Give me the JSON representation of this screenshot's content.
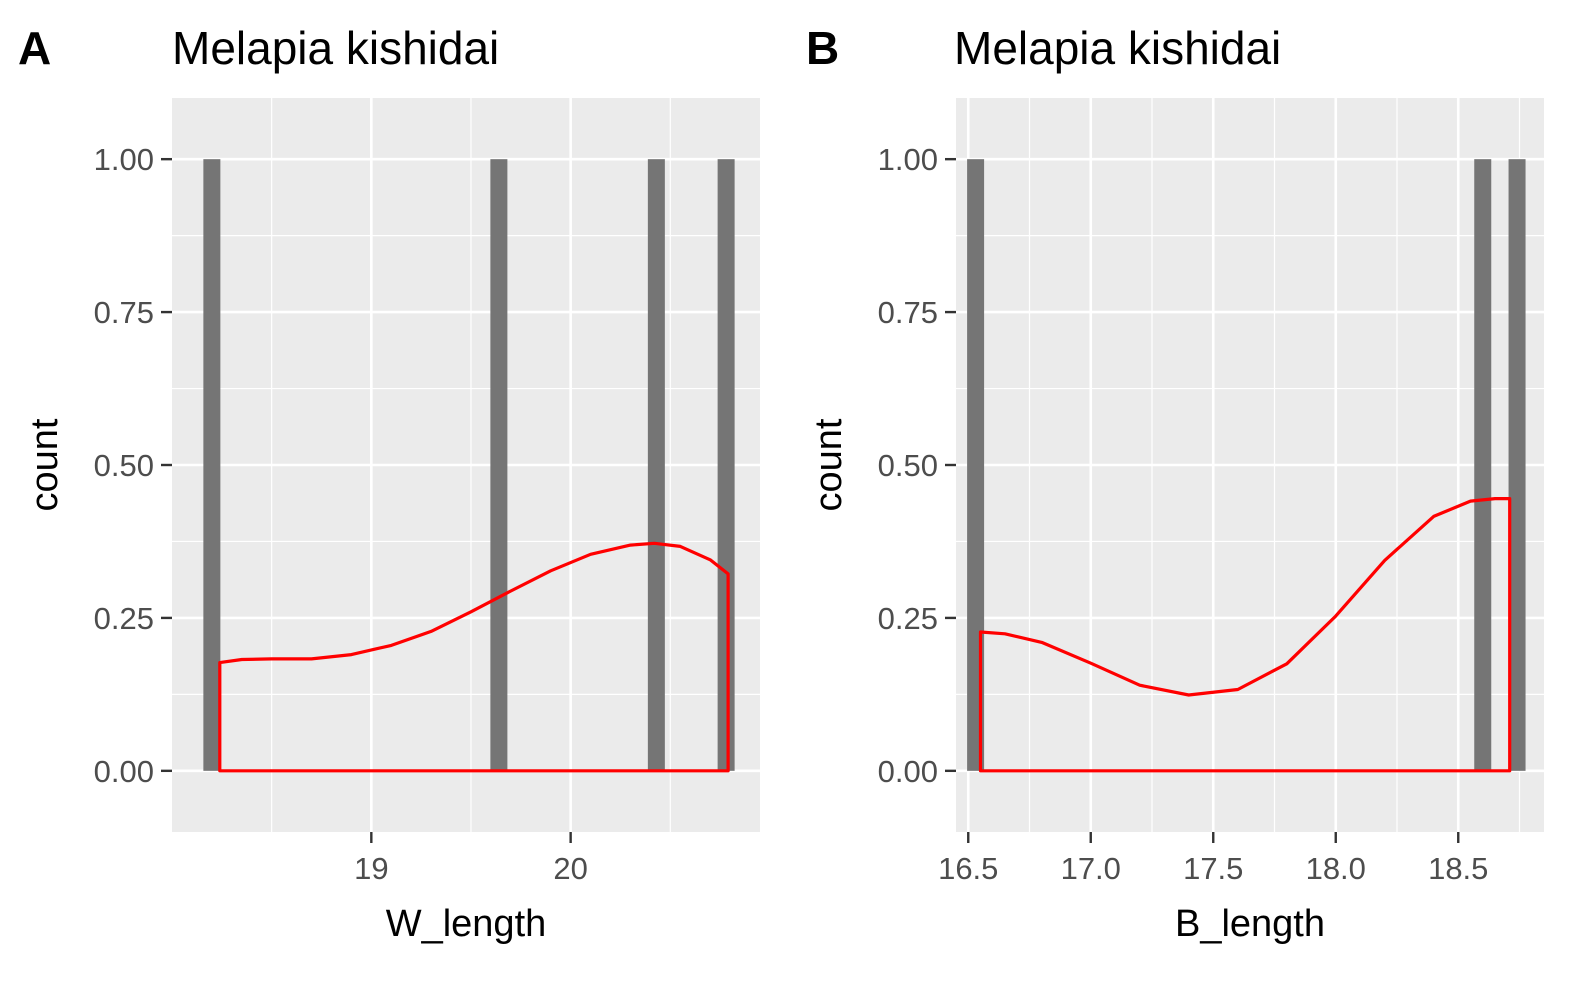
{
  "figure": {
    "panels": [
      {
        "letter": "A",
        "title": "Melapia kishidai"
      },
      {
        "letter": "B",
        "title": "Melapia kishidai"
      }
    ]
  },
  "chart_data": [
    {
      "type": "bar",
      "title": "Melapia kishidai",
      "panel_label": "A",
      "xlabel": "W_length",
      "ylabel": "count",
      "xlim": [
        18.0,
        20.95
      ],
      "ylim": [
        -0.1,
        1.1
      ],
      "xticks": [
        19,
        20
      ],
      "xtick_labels": [
        "19",
        "20"
      ],
      "yticks": [
        0.0,
        0.25,
        0.5,
        0.75,
        1.0
      ],
      "ytick_labels": [
        "0.00",
        "0.25",
        "0.50",
        "0.75",
        "1.00"
      ],
      "grid": true,
      "bar_color": "#757575",
      "bars": [
        {
          "x": 18.2,
          "value": 1
        },
        {
          "x": 19.64,
          "value": 1
        },
        {
          "x": 20.43,
          "value": 1
        },
        {
          "x": 20.78,
          "value": 1
        }
      ],
      "density": {
        "color": "#ff0000",
        "x": [
          18.24,
          18.35,
          18.5,
          18.7,
          18.9,
          19.1,
          19.3,
          19.5,
          19.7,
          19.9,
          20.1,
          20.3,
          20.42,
          20.55,
          20.7,
          20.79
        ],
        "y": [
          0.177,
          0.182,
          0.183,
          0.183,
          0.19,
          0.205,
          0.228,
          0.26,
          0.294,
          0.327,
          0.354,
          0.369,
          0.372,
          0.367,
          0.345,
          0.322
        ]
      }
    },
    {
      "type": "bar",
      "title": "Melapia kishidai",
      "panel_label": "B",
      "xlabel": "B_length",
      "ylabel": "count",
      "xlim": [
        16.45,
        18.85
      ],
      "ylim": [
        -0.1,
        1.1
      ],
      "xticks": [
        16.5,
        17.0,
        17.5,
        18.0,
        18.5
      ],
      "xtick_labels": [
        "16.5",
        "17.0",
        "17.5",
        "18.0",
        "18.5"
      ],
      "yticks": [
        0.0,
        0.25,
        0.5,
        0.75,
        1.0
      ],
      "ytick_labels": [
        "0.00",
        "0.25",
        "0.50",
        "0.75",
        "1.00"
      ],
      "grid": true,
      "bar_color": "#757575",
      "bars": [
        {
          "x": 16.53,
          "value": 1
        },
        {
          "x": 18.6,
          "value": 1
        },
        {
          "x": 18.74,
          "value": 1
        }
      ],
      "density": {
        "color": "#ff0000",
        "x": [
          16.55,
          16.65,
          16.8,
          17.0,
          17.2,
          17.4,
          17.6,
          17.8,
          18.0,
          18.2,
          18.4,
          18.55,
          18.65,
          18.71
        ],
        "y": [
          0.227,
          0.224,
          0.21,
          0.176,
          0.14,
          0.124,
          0.133,
          0.175,
          0.253,
          0.344,
          0.416,
          0.441,
          0.445,
          0.445
        ]
      }
    }
  ]
}
